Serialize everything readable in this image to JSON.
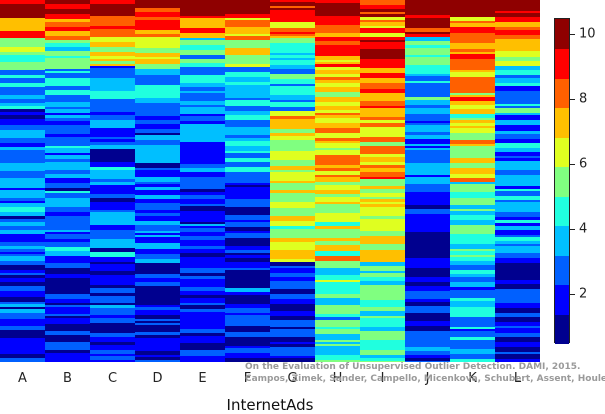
{
  "chart_data": {
    "type": "heatmap",
    "title": "",
    "xlabel": "InternetAds",
    "ylabel": "",
    "columns": [
      "A",
      "B",
      "C",
      "D",
      "E",
      "F",
      "G",
      "H",
      "I",
      "J",
      "K",
      "L"
    ],
    "value_range": [
      0.5,
      10.5
    ],
    "colorbar": {
      "ticks": [
        2,
        4,
        6,
        8,
        10
      ],
      "levels": [
        1,
        2,
        3,
        4,
        5,
        6,
        7,
        8,
        9,
        10
      ],
      "colors": [
        "#00008f",
        "#0000ff",
        "#0060ff",
        "#00bfff",
        "#20ffdf",
        "#80ff80",
        "#dfff20",
        "#ffbf00",
        "#ff6000",
        "#ff0000",
        "#8f0000"
      ]
    },
    "column_profiles": [
      {
        "column": "A",
        "segments": [
          [
            0.0,
            0.04,
            10
          ],
          [
            0.04,
            0.1,
            8
          ],
          [
            0.1,
            0.18,
            5
          ],
          [
            0.18,
            0.3,
            3
          ],
          [
            0.3,
            0.5,
            2
          ],
          [
            0.5,
            0.72,
            2
          ],
          [
            0.72,
            1.0,
            1
          ]
        ]
      },
      {
        "column": "B",
        "segments": [
          [
            0.0,
            0.04,
            10
          ],
          [
            0.04,
            0.1,
            7
          ],
          [
            0.1,
            0.18,
            4
          ],
          [
            0.18,
            0.3,
            3
          ],
          [
            0.3,
            0.5,
            2
          ],
          [
            0.5,
            0.72,
            2
          ],
          [
            0.72,
            1.0,
            1
          ]
        ]
      },
      {
        "column": "C",
        "segments": [
          [
            0.0,
            0.04,
            10
          ],
          [
            0.04,
            0.1,
            8
          ],
          [
            0.1,
            0.18,
            6
          ],
          [
            0.18,
            0.3,
            3
          ],
          [
            0.3,
            0.5,
            2
          ],
          [
            0.5,
            0.72,
            2
          ],
          [
            0.72,
            1.0,
            1
          ]
        ]
      },
      {
        "column": "D",
        "segments": [
          [
            0.0,
            0.04,
            9
          ],
          [
            0.04,
            0.1,
            8
          ],
          [
            0.1,
            0.18,
            6
          ],
          [
            0.18,
            0.3,
            3
          ],
          [
            0.3,
            0.5,
            2
          ],
          [
            0.5,
            0.72,
            2
          ],
          [
            0.72,
            1.0,
            1
          ]
        ]
      },
      {
        "column": "E",
        "segments": [
          [
            0.0,
            0.04,
            10
          ],
          [
            0.04,
            0.1,
            8
          ],
          [
            0.1,
            0.18,
            4
          ],
          [
            0.18,
            0.3,
            3
          ],
          [
            0.3,
            0.5,
            2
          ],
          [
            0.5,
            0.72,
            1
          ],
          [
            0.72,
            1.0,
            1
          ]
        ]
      },
      {
        "column": "F",
        "segments": [
          [
            0.0,
            0.04,
            10
          ],
          [
            0.04,
            0.1,
            7
          ],
          [
            0.1,
            0.18,
            6
          ],
          [
            0.18,
            0.3,
            3
          ],
          [
            0.3,
            0.5,
            3
          ],
          [
            0.5,
            0.72,
            1
          ],
          [
            0.72,
            1.0,
            1
          ]
        ]
      },
      {
        "column": "G",
        "segments": [
          [
            0.0,
            0.04,
            10
          ],
          [
            0.04,
            0.1,
            8
          ],
          [
            0.1,
            0.18,
            4
          ],
          [
            0.18,
            0.3,
            3
          ],
          [
            0.3,
            0.5,
            6
          ],
          [
            0.5,
            0.72,
            6
          ],
          [
            0.72,
            1.0,
            1
          ]
        ]
      },
      {
        "column": "H",
        "segments": [
          [
            0.0,
            0.04,
            10
          ],
          [
            0.04,
            0.1,
            8
          ],
          [
            0.1,
            0.18,
            8
          ],
          [
            0.18,
            0.3,
            7
          ],
          [
            0.3,
            0.5,
            7
          ],
          [
            0.5,
            0.72,
            6
          ],
          [
            0.72,
            1.0,
            4
          ]
        ]
      },
      {
        "column": "I",
        "segments": [
          [
            0.0,
            0.04,
            9
          ],
          [
            0.04,
            0.1,
            8
          ],
          [
            0.1,
            0.18,
            9
          ],
          [
            0.18,
            0.3,
            8
          ],
          [
            0.3,
            0.5,
            7
          ],
          [
            0.5,
            0.72,
            6
          ],
          [
            0.72,
            1.0,
            4
          ]
        ]
      },
      {
        "column": "J",
        "segments": [
          [
            0.0,
            0.04,
            11
          ],
          [
            0.04,
            0.1,
            9
          ],
          [
            0.1,
            0.18,
            5
          ],
          [
            0.18,
            0.3,
            3
          ],
          [
            0.3,
            0.5,
            2
          ],
          [
            0.5,
            0.72,
            1
          ],
          [
            0.72,
            1.0,
            1
          ]
        ]
      },
      {
        "column": "K",
        "segments": [
          [
            0.0,
            0.04,
            11
          ],
          [
            0.04,
            0.1,
            8
          ],
          [
            0.1,
            0.18,
            7
          ],
          [
            0.18,
            0.3,
            7
          ],
          [
            0.3,
            0.5,
            6
          ],
          [
            0.5,
            0.72,
            4
          ],
          [
            0.72,
            1.0,
            3
          ]
        ]
      },
      {
        "column": "L",
        "segments": [
          [
            0.0,
            0.04,
            10
          ],
          [
            0.04,
            0.1,
            8
          ],
          [
            0.1,
            0.18,
            6
          ],
          [
            0.18,
            0.3,
            3
          ],
          [
            0.3,
            0.5,
            2
          ],
          [
            0.5,
            0.72,
            2
          ],
          [
            0.72,
            1.0,
            1
          ]
        ]
      }
    ],
    "grid": false,
    "legend": "colorbar-right"
  },
  "credit": {
    "line1": "On the Evaluation of Unsupervised Outlier Detection. DAMI, 2015.",
    "line2": "Campos, Zimek, Sander, Campello, Micenkova, Schubert, Assent, Houle"
  }
}
